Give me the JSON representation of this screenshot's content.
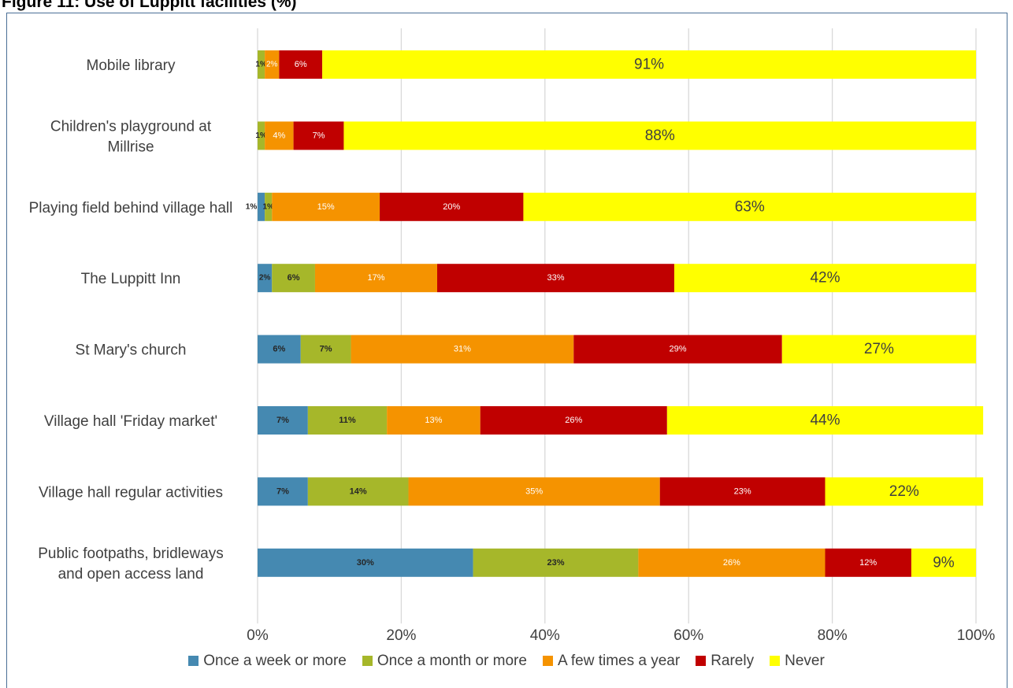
{
  "page_title": "Figure 11: Use of Luppitt facilities (%)",
  "chart_data": {
    "type": "bar",
    "orientation": "horizontal",
    "stacked": "percent",
    "categories": [
      "Mobile library",
      "Children's playground at Millrise",
      "Playing field behind village hall",
      "The Luppitt Inn",
      "St Mary's church",
      "Village hall 'Friday market'",
      "Village hall regular activities",
      "Public footpaths, bridleways and open access land"
    ],
    "series": [
      {
        "name": "Once a week or more",
        "color": "#4589b1",
        "values": [
          0,
          0,
          1,
          2,
          6,
          7,
          7,
          30
        ],
        "labels": [
          "",
          "",
          "1%",
          "2%",
          "6%",
          "7%",
          "7%",
          "30%"
        ]
      },
      {
        "name": "Once a month or more",
        "color": "#a6b72a",
        "values": [
          1,
          1,
          1,
          6,
          7,
          11,
          14,
          23
        ],
        "labels": [
          "1%",
          "1%",
          "1%",
          "6%",
          "7%",
          "11%",
          "14%",
          "23%"
        ]
      },
      {
        "name": "A few times a year",
        "color": "#f59300",
        "values": [
          2,
          4,
          15,
          17,
          31,
          13,
          35,
          26
        ],
        "labels": [
          "2%",
          "4%",
          "15%",
          "17%",
          "31%",
          "13%",
          "35%",
          "26%"
        ]
      },
      {
        "name": "Rarely",
        "color": "#c00000",
        "values": [
          6,
          7,
          20,
          33,
          29,
          26,
          23,
          12
        ],
        "labels": [
          "6%",
          "7%",
          "20%",
          "33%",
          "29%",
          "26%",
          "23%",
          "12%"
        ]
      },
      {
        "name": "Never",
        "color": "#ffff00",
        "values": [
          91,
          88,
          63,
          42,
          27,
          44,
          22,
          9
        ],
        "labels": [
          "91%",
          "88%",
          "63%",
          "42%",
          "27%",
          "44%",
          "22%",
          "9%"
        ]
      }
    ],
    "x_ticks": [
      "0%",
      "20%",
      "40%",
      "60%",
      "80%",
      "100%"
    ],
    "xlim": [
      0,
      100
    ],
    "grid": "vertical",
    "legend_position": "bottom"
  }
}
